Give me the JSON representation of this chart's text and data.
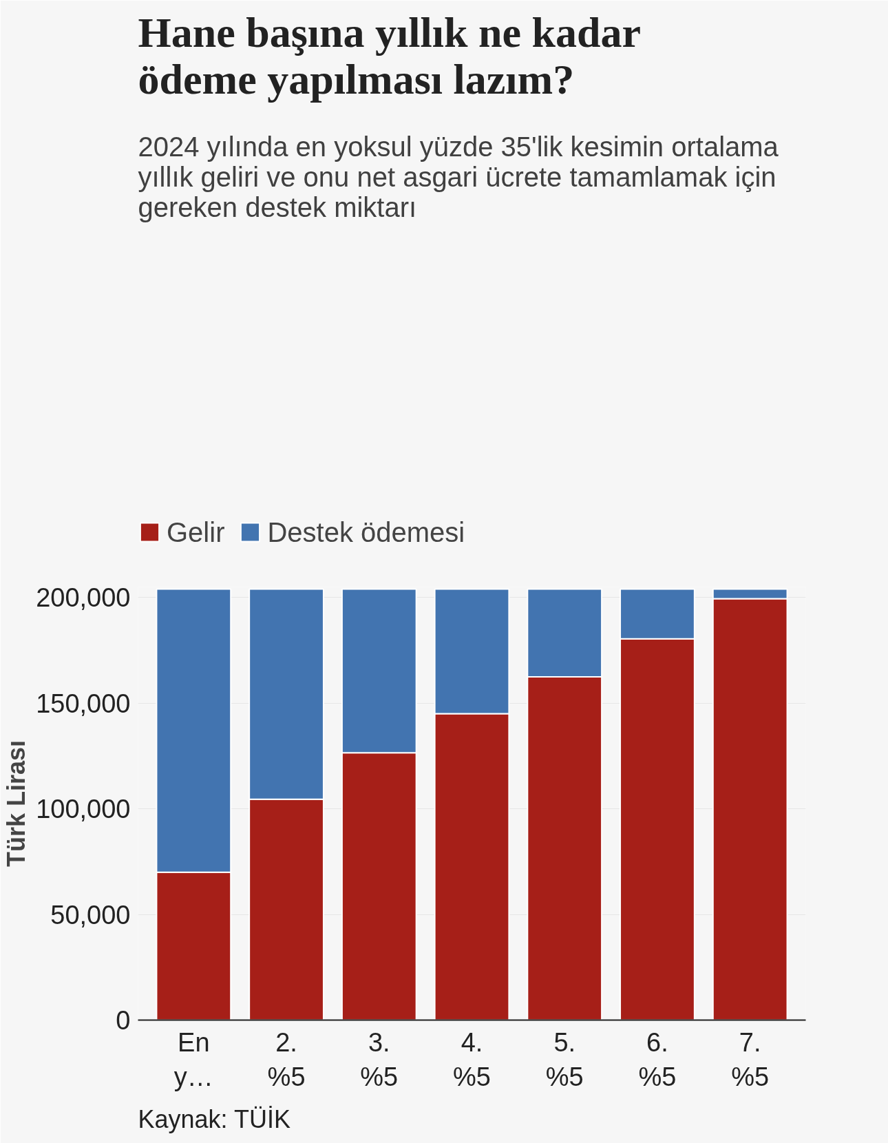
{
  "chart_data": {
    "type": "bar",
    "stacked": true,
    "title": "Hane başına yıllık ne kadar\nödeme yapılması lazım?",
    "subtitle": "2024 yılında en yoksul yüzde 35'lik kesimin ortalama\nyıllık geliri ve onu net asgari ücrete tamamlamak için\ngereken destek miktarı",
    "ylabel": "Türk Lirası",
    "categories": [
      "En y…",
      "2. %5",
      "3. %5",
      "4. %5",
      "5. %5",
      "6. %5",
      "7. %5"
    ],
    "series": [
      {
        "name": "Gelir",
        "color": "#a61f18",
        "values": [
          70000,
          104500,
          126500,
          145000,
          162500,
          180500,
          199500
        ]
      },
      {
        "name": "Destek ödemesi",
        "color": "#4274b0",
        "values": [
          134000,
          99500,
          77500,
          59000,
          41500,
          23500,
          4500
        ]
      }
    ],
    "ylim": [
      0,
      205000
    ],
    "yticks": [
      {
        "value": 0,
        "label": "0"
      },
      {
        "value": 50000,
        "label": "50,000"
      },
      {
        "value": 100000,
        "label": "100,000"
      },
      {
        "value": 150000,
        "label": "150,000"
      },
      {
        "value": 200000,
        "label": "200,000"
      }
    ],
    "grid": "y",
    "legend": "top left",
    "annotations": [
      "Kaynak: TÜİK"
    ]
  }
}
